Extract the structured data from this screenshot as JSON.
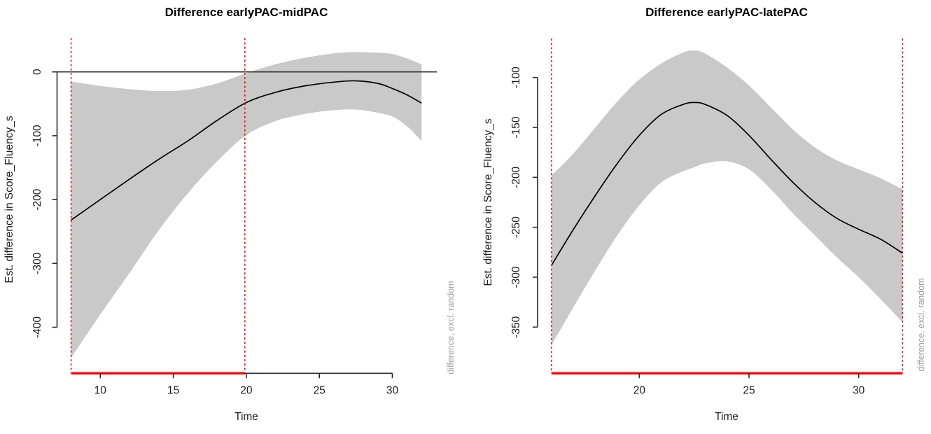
{
  "figure": {
    "background": "#ffffff",
    "colors": {
      "band": "#c9c9c9",
      "fit_line": "#000000",
      "zero_line": "#333333",
      "axis": "#2a2a2a",
      "significance_line": "#ff0000",
      "marker_line": "#ff0000",
      "tick_label": "#1c1c1c",
      "side_label": "#9e9e9e",
      "title": "#000000"
    }
  },
  "chart_data": [
    {
      "type": "line",
      "title": "Difference earlyPAC-midPAC",
      "xlabel": "Time",
      "ylabel": "Est. difference in Score_Fluency_s",
      "side_label": "difference, excl. random",
      "grid": false,
      "legend_position": "none",
      "x_ticks": [
        10,
        15,
        20,
        25,
        30
      ],
      "y_ticks": [
        0,
        -100,
        -200,
        -300,
        -400
      ],
      "xlim": [
        8,
        32
      ],
      "ylim": [
        -464,
        53
      ],
      "zero_line": 0,
      "significance_window": [
        8,
        19.9
      ],
      "marked_x": [
        8,
        19.9
      ],
      "x": [
        8,
        10,
        12,
        14,
        16,
        18,
        20,
        22,
        24,
        26,
        27.5,
        29,
        30,
        31,
        32
      ],
      "fit": [
        -232,
        -200,
        -168,
        -137,
        -108,
        -76,
        -48,
        -32,
        -22,
        -16,
        -14,
        -18,
        -26,
        -36,
        -49
      ],
      "ci_upper": [
        -15,
        -22,
        -27,
        -30,
        -28,
        -18,
        -2,
        12,
        22,
        29,
        31,
        30,
        28,
        21,
        12
      ],
      "ci_lower": [
        -448,
        -380,
        -315,
        -248,
        -190,
        -140,
        -99,
        -77,
        -66,
        -60,
        -59,
        -64,
        -70,
        -85,
        -108
      ]
    },
    {
      "type": "line",
      "title": "Difference earlyPAC-latePAC",
      "xlabel": "Time",
      "ylabel": "Est. difference in Score_Fluency_s",
      "side_label": "difference, excl. random",
      "grid": false,
      "legend_position": "none",
      "x_ticks": [
        20,
        25,
        30
      ],
      "y_ticks": [
        -100,
        -150,
        -200,
        -250,
        -300,
        -350
      ],
      "xlim": [
        16,
        32
      ],
      "ylim": [
        -380,
        -61
      ],
      "zero_line": null,
      "significance_window": [
        16,
        32
      ],
      "marked_x": [
        16,
        32
      ],
      "x": [
        16,
        17,
        18,
        19,
        20,
        21,
        22,
        22.5,
        23,
        24,
        25,
        26,
        27,
        28,
        29,
        30,
        31,
        32
      ],
      "fit": [
        -288,
        -252,
        -218,
        -186,
        -158,
        -137,
        -127,
        -125,
        -127,
        -138,
        -158,
        -182,
        -205,
        -225,
        -241,
        -252,
        -262,
        -276
      ],
      "ci_upper": [
        -198,
        -176,
        -150,
        -124,
        -102,
        -86,
        -75,
        -73,
        -76,
        -90,
        -108,
        -130,
        -152,
        -170,
        -183,
        -192,
        -201,
        -212
      ],
      "ci_lower": [
        -368,
        -330,
        -293,
        -258,
        -228,
        -205,
        -194,
        -190,
        -186,
        -184,
        -192,
        -212,
        -236,
        -258,
        -280,
        -300,
        -322,
        -345
      ]
    }
  ]
}
